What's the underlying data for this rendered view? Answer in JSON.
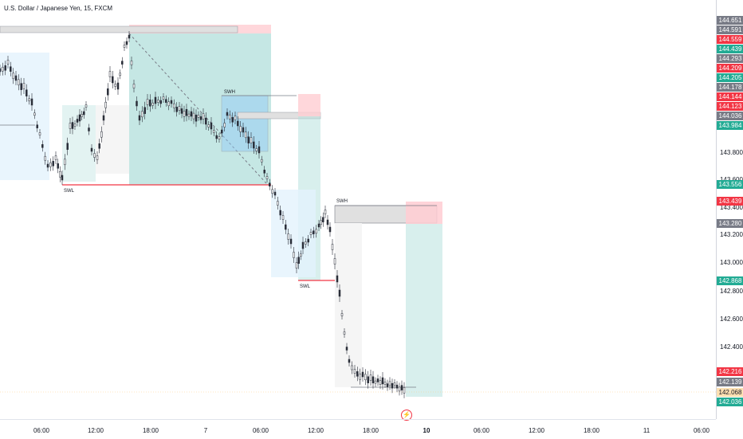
{
  "symbol": {
    "title": "U.S. Dollar / Japanese Yen, 15, FXCM"
  },
  "annotations": {
    "swl_1": "SWL",
    "swh_1": "SWH",
    "swl_2": "SWL",
    "swh_2": "SWH"
  },
  "price_ticks": [
    "143.800",
    "143.600",
    "143.400",
    "143.200",
    "143.000",
    "142.800",
    "142.600",
    "142.400"
  ],
  "price_labels": [
    {
      "text": "144.651",
      "color": "#787b86"
    },
    {
      "text": "144.591",
      "color": "#787b86"
    },
    {
      "text": "144.559",
      "color": "#f23645"
    },
    {
      "text": "144.439",
      "color": "#22ab94"
    },
    {
      "text": "144.293",
      "color": "#787b86"
    },
    {
      "text": "144.209",
      "color": "#f23645"
    },
    {
      "text": "144.205",
      "color": "#22ab94"
    },
    {
      "text": "144.178",
      "color": "#787b86"
    },
    {
      "text": "144.144",
      "color": "#f23645"
    },
    {
      "text": "144.123",
      "color": "#f23645"
    },
    {
      "text": "144.036",
      "color": "#787b86"
    },
    {
      "text": "143.984",
      "color": "#22ab94"
    },
    {
      "text": "143.556",
      "color": "#22ab94"
    },
    {
      "text": "143.439",
      "color": "#f23645"
    },
    {
      "text": "143.280",
      "color": "#787b86"
    },
    {
      "text": "142.868",
      "color": "#22ab94"
    },
    {
      "text": "142.216",
      "color": "#f23645"
    },
    {
      "text": "142.139",
      "color": "#787b86"
    },
    {
      "text": "142.068",
      "color": "#ffe0b2"
    },
    {
      "text": "142.036",
      "color": "#22ab94"
    }
  ],
  "time_ticks": [
    {
      "label": "06:00",
      "bold": false
    },
    {
      "label": "12:00",
      "bold": false
    },
    {
      "label": "18:00",
      "bold": false
    },
    {
      "label": "7",
      "bold": false
    },
    {
      "label": "06:00",
      "bold": false
    },
    {
      "label": "12:00",
      "bold": false
    },
    {
      "label": "18:00",
      "bold": false
    },
    {
      "label": "10",
      "bold": true
    },
    {
      "label": "06:00",
      "bold": false
    },
    {
      "label": "12:00",
      "bold": false
    },
    {
      "label": "18:00",
      "bold": false
    },
    {
      "label": "11",
      "bold": false
    },
    {
      "label": "06:00",
      "bold": false
    }
  ],
  "colors": {
    "up": "#089981",
    "down": "#f23645",
    "candle": "#2a2e39",
    "long": "#22ab94",
    "short": "#f23645"
  },
  "icons": {
    "flash": "flash-icon"
  }
}
